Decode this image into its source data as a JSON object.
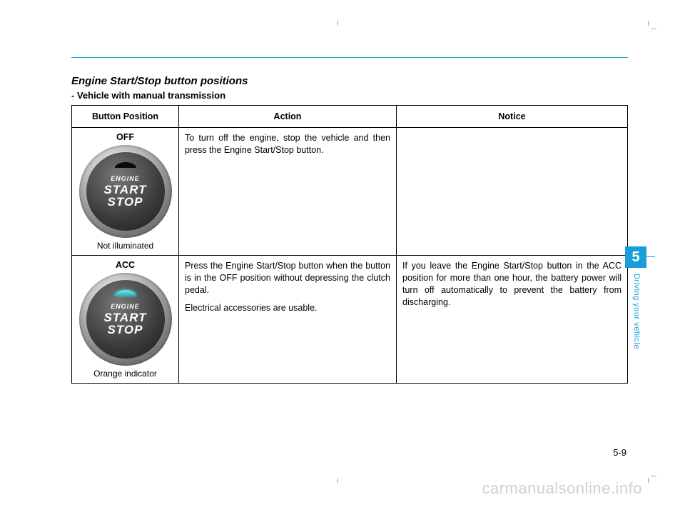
{
  "crop_marks": {
    "glyph": "I",
    "dash": "–"
  },
  "section_title": "Engine Start/Stop button positions",
  "subtitle": "- Vehicle with manual transmission",
  "columns": {
    "position": "Button Position",
    "action": "Action",
    "notice": "Notice"
  },
  "rows": [
    {
      "label": "OFF",
      "indicator_caption": "Not illuminated",
      "button": {
        "engine": "ENGINE",
        "start": "START",
        "stop": "STOP",
        "lit": false
      },
      "action_paragraphs": [
        "To turn off the engine, stop the vehicle and then press the Engine Start/Stop button."
      ],
      "notice_paragraphs": []
    },
    {
      "label": "ACC",
      "indicator_caption": "Orange indicator",
      "button": {
        "engine": "ENGINE",
        "start": "START",
        "stop": "STOP",
        "lit": true
      },
      "action_paragraphs": [
        "Press the Engine Start/Stop button when the button is in the OFF position without depressing the clutch pedal.",
        "Electrical accessories are usable."
      ],
      "notice_paragraphs": [
        "If you leave the Engine Start/Stop button in the ACC position for more than one hour, the battery power will turn off automatically to prevent the battery from discharging."
      ]
    }
  ],
  "side_tab": {
    "number": "5",
    "text": "Driving your vehicle"
  },
  "page_number": "5-9",
  "watermark": "carmanualsonline.info",
  "colors": {
    "accent": "#1a9edb",
    "watermark": "#d0d0d0"
  }
}
